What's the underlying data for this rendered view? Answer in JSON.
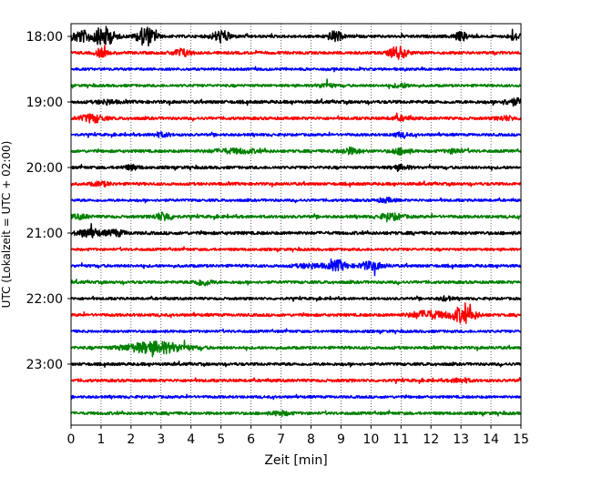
{
  "chart_data": {
    "type": "line",
    "title": "",
    "xlabel": "Zeit  [min]",
    "ylabel": "UTC (Lokalzeit = UTC + 02:00)",
    "xlim": [
      0,
      15
    ],
    "x_ticks": [
      0,
      1,
      2,
      3,
      4,
      5,
      6,
      7,
      8,
      9,
      10,
      11,
      12,
      13,
      14,
      15
    ],
    "x_tick_labels": [
      "0",
      "1",
      "2",
      "3",
      "4",
      "5",
      "6",
      "7",
      "8",
      "9",
      "10",
      "11",
      "12",
      "13",
      "14",
      "15"
    ],
    "y_tick_labels": [
      "18:00",
      "19:00",
      "20:00",
      "21:00",
      "22:00",
      "23:00"
    ],
    "y_tick_rows": [
      0,
      4,
      8,
      12,
      16,
      20
    ],
    "vertical_grid": "dotted",
    "trace_colors": [
      "#000000",
      "#ff0000",
      "#0000ff",
      "#008000"
    ],
    "traces": [
      {
        "start": "18:00",
        "amp": 1.0,
        "bursts": [
          [
            0.3,
            0.35,
            6
          ],
          [
            1.1,
            0.35,
            10
          ],
          [
            2.5,
            0.3,
            10
          ],
          [
            5.0,
            0.3,
            6
          ],
          [
            8.8,
            0.25,
            5
          ],
          [
            13.0,
            0.25,
            4
          ],
          [
            14.8,
            0.2,
            4
          ]
        ]
      },
      {
        "start": "18:15",
        "amp": 1.0,
        "bursts": [
          [
            1.0,
            0.2,
            4
          ],
          [
            3.7,
            0.3,
            4
          ],
          [
            10.9,
            0.3,
            6
          ]
        ]
      },
      {
        "start": "18:30",
        "amp": 0.9,
        "bursts": []
      },
      {
        "start": "18:45",
        "amp": 0.9,
        "bursts": [
          [
            8.5,
            0.3,
            2
          ],
          [
            11.0,
            0.3,
            2
          ]
        ]
      },
      {
        "start": "19:00",
        "amp": 1.1,
        "bursts": [
          [
            1.2,
            0.3,
            2
          ],
          [
            14.8,
            0.4,
            3
          ]
        ]
      },
      {
        "start": "19:15",
        "amp": 1.0,
        "bursts": [
          [
            0.7,
            0.4,
            4
          ],
          [
            11.0,
            0.3,
            2
          ],
          [
            14.5,
            0.3,
            2
          ]
        ]
      },
      {
        "start": "19:30",
        "amp": 0.9,
        "bursts": [
          [
            3.0,
            0.3,
            2
          ],
          [
            11.0,
            0.3,
            2
          ]
        ]
      },
      {
        "start": "19:45",
        "amp": 1.0,
        "bursts": [
          [
            5.5,
            0.8,
            2
          ],
          [
            9.3,
            0.35,
            3
          ],
          [
            11.0,
            0.3,
            3
          ],
          [
            12.8,
            0.3,
            2
          ]
        ]
      },
      {
        "start": "20:00",
        "amp": 1.0,
        "bursts": [
          [
            2.0,
            0.3,
            2
          ],
          [
            11.0,
            0.3,
            2
          ]
        ]
      },
      {
        "start": "20:15",
        "amp": 1.0,
        "bursts": [
          [
            1.0,
            0.3,
            2
          ]
        ]
      },
      {
        "start": "20:30",
        "amp": 0.9,
        "bursts": [
          [
            10.5,
            0.3,
            2
          ]
        ]
      },
      {
        "start": "20:45",
        "amp": 1.0,
        "bursts": [
          [
            0.3,
            0.3,
            2
          ],
          [
            3.1,
            0.3,
            4
          ],
          [
            10.7,
            0.4,
            3
          ]
        ]
      },
      {
        "start": "21:00",
        "amp": 1.1,
        "bursts": [
          [
            0.6,
            0.4,
            4
          ],
          [
            1.5,
            0.3,
            3
          ]
        ]
      },
      {
        "start": "21:15",
        "amp": 0.9,
        "bursts": []
      },
      {
        "start": "21:30",
        "amp": 1.0,
        "bursts": [
          [
            8.0,
            0.5,
            2
          ],
          [
            8.9,
            0.3,
            5
          ],
          [
            10.0,
            0.4,
            4
          ]
        ]
      },
      {
        "start": "21:45",
        "amp": 1.0,
        "bursts": [
          [
            4.4,
            0.3,
            3
          ]
        ]
      },
      {
        "start": "22:00",
        "amp": 0.9,
        "bursts": [
          [
            12.5,
            0.2,
            2
          ]
        ]
      },
      {
        "start": "22:15",
        "amp": 1.0,
        "bursts": [
          [
            11.9,
            0.6,
            4
          ],
          [
            13.1,
            0.4,
            8
          ]
        ]
      },
      {
        "start": "22:30",
        "amp": 0.9,
        "bursts": []
      },
      {
        "start": "22:45",
        "amp": 1.0,
        "bursts": [
          [
            2.8,
            1.0,
            6
          ]
        ]
      },
      {
        "start": "23:00",
        "amp": 1.0,
        "bursts": []
      },
      {
        "start": "23:15",
        "amp": 1.0,
        "bursts": [
          [
            13.0,
            0.3,
            2
          ]
        ]
      },
      {
        "start": "23:30",
        "amp": 0.9,
        "bursts": []
      },
      {
        "start": "23:45",
        "amp": 1.0,
        "bursts": [
          [
            7.0,
            0.3,
            2
          ]
        ]
      }
    ]
  }
}
